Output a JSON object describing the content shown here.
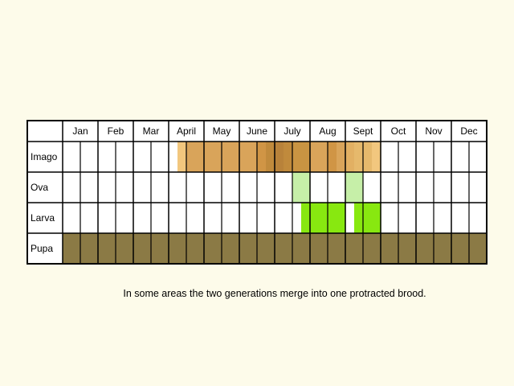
{
  "chart_data": {
    "type": "table",
    "months": [
      "Jan",
      "Feb",
      "Mar",
      "April",
      "May",
      "June",
      "July",
      "Aug",
      "Sept",
      "Oct",
      "Nov",
      "Dec"
    ],
    "stages": [
      {
        "name": "Imago",
        "color": "#d9a45a",
        "cells": [
          {
            "week": 13,
            "color": "#f2c77e"
          },
          {
            "week": 14,
            "color": "#d9a45a"
          },
          {
            "week": 15,
            "color": "#d9a45a"
          },
          {
            "week": 16,
            "color": "#d9a45a"
          },
          {
            "week": 17,
            "color": "#d9a45a"
          },
          {
            "week": 18,
            "color": "#d9a45a"
          },
          {
            "week": 19,
            "color": "#d9a45a"
          },
          {
            "week": 20,
            "color": "#d9a45a"
          },
          {
            "week": 21,
            "color": "#d9a45a"
          },
          {
            "week": 22,
            "color": "#d09545"
          },
          {
            "week": 23,
            "color": "#c08a3c"
          },
          {
            "week": 24,
            "color": "#b8823a"
          },
          {
            "week": 25,
            "color": "#c08a3c"
          },
          {
            "week": 26,
            "color": "#c99442"
          },
          {
            "week": 27,
            "color": "#c99442"
          },
          {
            "week": 28,
            "color": "#d9a45a"
          },
          {
            "week": 29,
            "color": "#d9a45a"
          },
          {
            "week": 30,
            "color": "#d09545"
          },
          {
            "week": 31,
            "color": "#d9a45a"
          },
          {
            "week": 32,
            "color": "#e2b063"
          },
          {
            "week": 33,
            "color": "#e6b96c"
          },
          {
            "week": 34,
            "color": "#e6b96c"
          },
          {
            "week": 35,
            "color": "#f2c77e"
          }
        ]
      },
      {
        "name": "Ova",
        "color": "#c6efa8",
        "cells": [
          {
            "week": 26,
            "color": "#c6efa8"
          },
          {
            "week": 27,
            "color": "#c6efa8"
          },
          {
            "week": 32,
            "color": "#c6efa8"
          },
          {
            "week": 33,
            "color": "#c6efa8"
          }
        ]
      },
      {
        "name": "Larva",
        "color": "#88e810",
        "cells": [
          {
            "week": 27,
            "color": "#88e810"
          },
          {
            "week": 28,
            "color": "#88e810"
          },
          {
            "week": 29,
            "color": "#88e810"
          },
          {
            "week": 30,
            "color": "#88e810"
          },
          {
            "week": 31,
            "color": "#88e810"
          },
          {
            "week": 33,
            "color": "#88e810"
          },
          {
            "week": 34,
            "color": "#88e810"
          },
          {
            "week": 35,
            "color": "#88e810"
          }
        ]
      },
      {
        "name": "Pupa",
        "color": "#8b7a45",
        "cells": [
          {
            "week": 0,
            "color": "#8b7a45"
          },
          {
            "week": 1,
            "color": "#8b7a45"
          },
          {
            "week": 2,
            "color": "#8b7a45"
          },
          {
            "week": 3,
            "color": "#8b7a45"
          },
          {
            "week": 4,
            "color": "#8b7a45"
          },
          {
            "week": 5,
            "color": "#8b7a45"
          },
          {
            "week": 6,
            "color": "#8b7a45"
          },
          {
            "week": 7,
            "color": "#8b7a45"
          },
          {
            "week": 8,
            "color": "#8b7a45"
          },
          {
            "week": 9,
            "color": "#8b7a45"
          },
          {
            "week": 10,
            "color": "#8b7a45"
          },
          {
            "week": 11,
            "color": "#8b7a45"
          },
          {
            "week": 12,
            "color": "#8b7a45"
          },
          {
            "week": 13,
            "color": "#8b7a45"
          },
          {
            "week": 14,
            "color": "#8b7a45"
          },
          {
            "week": 15,
            "color": "#8b7a45"
          },
          {
            "week": 16,
            "color": "#8b7a45"
          },
          {
            "week": 17,
            "color": "#8b7a45"
          },
          {
            "week": 18,
            "color": "#8b7a45"
          },
          {
            "week": 19,
            "color": "#8b7a45"
          },
          {
            "week": 20,
            "color": "#8b7a45"
          },
          {
            "week": 21,
            "color": "#8b7a45"
          },
          {
            "week": 22,
            "color": "#8b7a45"
          },
          {
            "week": 23,
            "color": "#8b7a45"
          },
          {
            "week": 24,
            "color": "#8b7a45"
          },
          {
            "week": 25,
            "color": "#8b7a45"
          },
          {
            "week": 26,
            "color": "#8b7a45"
          },
          {
            "week": 27,
            "color": "#8b7a45"
          },
          {
            "week": 28,
            "color": "#8b7a45"
          },
          {
            "week": 29,
            "color": "#8b7a45"
          },
          {
            "week": 30,
            "color": "#8b7a45"
          },
          {
            "week": 31,
            "color": "#8b7a45"
          },
          {
            "week": 32,
            "color": "#8b7a45"
          },
          {
            "week": 33,
            "color": "#8b7a45"
          },
          {
            "week": 34,
            "color": "#8b7a45"
          },
          {
            "week": 35,
            "color": "#8b7a45"
          },
          {
            "week": 36,
            "color": "#8b7a45"
          },
          {
            "week": 37,
            "color": "#8b7a45"
          },
          {
            "week": 38,
            "color": "#8b7a45"
          },
          {
            "week": 39,
            "color": "#8b7a45"
          },
          {
            "week": 40,
            "color": "#8b7a45"
          },
          {
            "week": 41,
            "color": "#8b7a45"
          },
          {
            "week": 42,
            "color": "#8b7a45"
          },
          {
            "week": 43,
            "color": "#8b7a45"
          },
          {
            "week": 44,
            "color": "#8b7a45"
          },
          {
            "week": 45,
            "color": "#8b7a45"
          },
          {
            "week": 46,
            "color": "#8b7a45"
          },
          {
            "week": 47,
            "color": "#8b7a45"
          }
        ]
      }
    ],
    "note": "In some areas the two generations merge into one protracted brood."
  }
}
